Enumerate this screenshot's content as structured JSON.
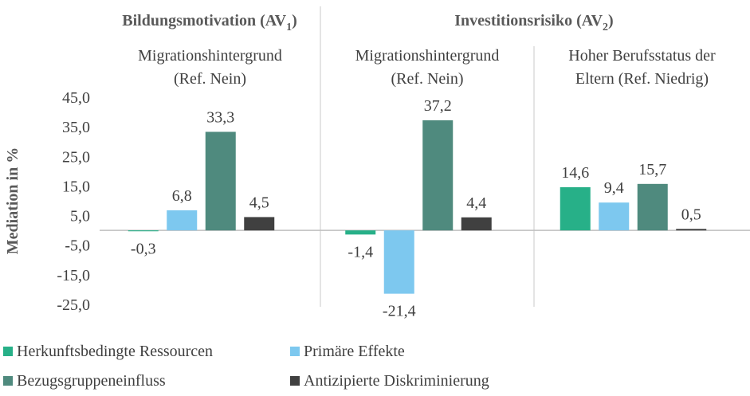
{
  "chart_data": {
    "type": "bar",
    "groups": [
      {
        "parts": [
          "Bildungsmotivation (AV",
          "1",
          ")"
        ]
      },
      {
        "parts": [
          "Investitionsrisiko (AV",
          "2",
          ")"
        ]
      }
    ],
    "categories": [
      [
        "Migrationshintergrund",
        "(Ref. Nein)"
      ],
      [
        "Migrationshintergrund",
        "(Ref. Nein)"
      ],
      [
        "Hoher Berufsstatus der",
        "Eltern (Ref. Niedrig)"
      ]
    ],
    "y_label": "Mediation in %",
    "ylim": [
      -25,
      45
    ],
    "yticks": [
      {
        "value": 45,
        "label": "45,0"
      },
      {
        "value": 35,
        "label": "35,0"
      },
      {
        "value": 25,
        "label": "25,0"
      },
      {
        "value": 15,
        "label": "15,0"
      },
      {
        "value": 5,
        "label": "5,0"
      },
      {
        "value": -5,
        "label": "-5,0"
      },
      {
        "value": -15,
        "label": "-15,0"
      },
      {
        "value": -25,
        "label": "-25,0"
      }
    ],
    "series": [
      {
        "name": "Herkunftsbedingte Ressourcen",
        "color": "#27b088",
        "values": [
          -0.3,
          -1.4,
          14.6
        ],
        "value_labels": [
          "-0,3",
          "-1,4",
          "14,6"
        ]
      },
      {
        "name": "Primäre Effekte",
        "color": "#7dc8ef",
        "values": [
          6.8,
          -21.4,
          9.4
        ],
        "value_labels": [
          "6,8",
          "-21,4",
          "9,4"
        ]
      },
      {
        "name": "Bezugsgruppeneinfluss",
        "color": "#4f8a7e",
        "values": [
          33.3,
          37.2,
          15.7
        ],
        "value_labels": [
          "33,3",
          "37,2",
          "15,7"
        ]
      },
      {
        "name": "Antizipierte Diskriminierung",
        "color": "#404040",
        "values": [
          4.5,
          4.4,
          0.5
        ],
        "value_labels": [
          "4,5",
          "4,4",
          "0,5"
        ]
      }
    ]
  }
}
